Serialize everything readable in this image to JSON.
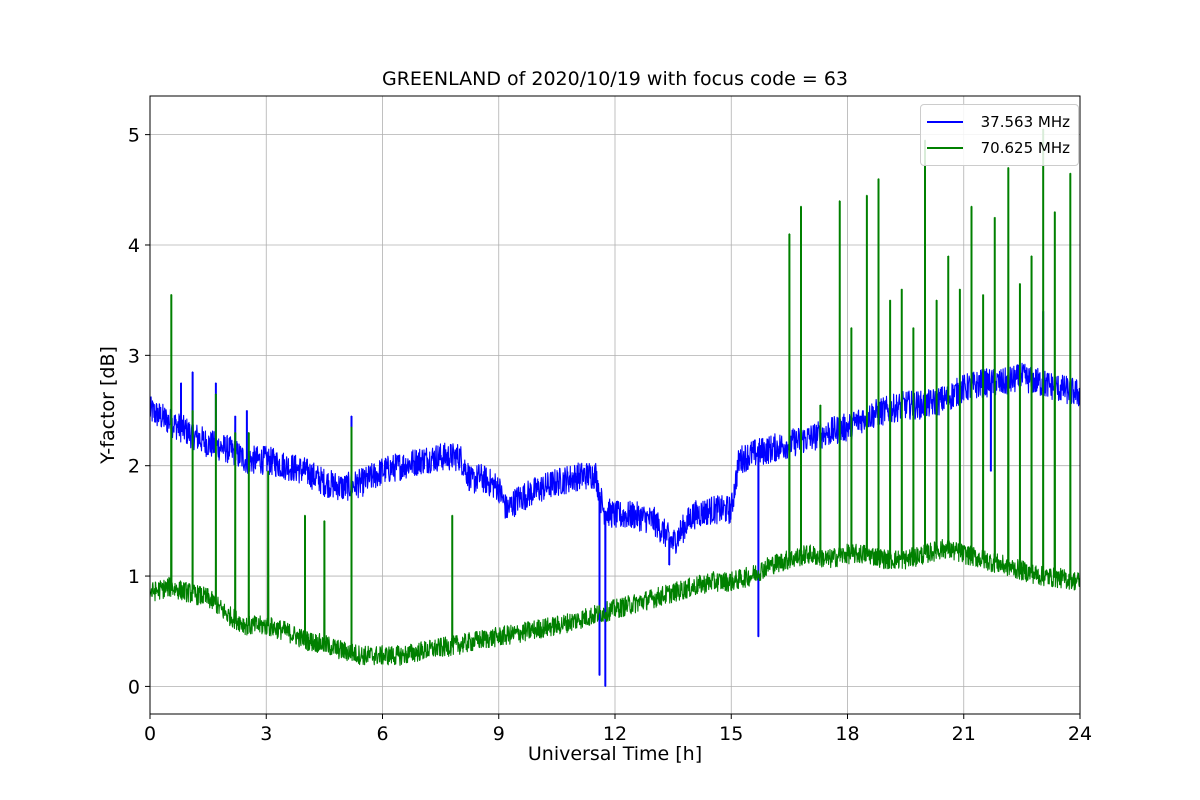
{
  "chart_data": {
    "type": "line",
    "title": "GREENLAND of 2020/10/19 with focus code = 63",
    "xlabel": "Universal Time [h]",
    "ylabel": "Y-factor [dB]",
    "xlim": [
      0,
      24
    ],
    "ylim": [
      -0.25,
      5.35
    ],
    "x_ticks": [
      "0",
      "3",
      "6",
      "9",
      "12",
      "15",
      "18",
      "21",
      "24"
    ],
    "y_ticks": [
      "0",
      "1",
      "2",
      "3",
      "4",
      "5"
    ],
    "grid": true,
    "legend_position": "top-right",
    "series": [
      {
        "name": "37.563 MHz",
        "color": "#0000ff",
        "noise": 0.13,
        "x": [
          0,
          0.5,
          1,
          1.5,
          2,
          2.5,
          3,
          3.5,
          4,
          4.5,
          5,
          5.5,
          6,
          6.5,
          7,
          7.5,
          8,
          8.3,
          8.5,
          9,
          9.2,
          9.5,
          10,
          10.5,
          11,
          11.5,
          11.7,
          12,
          12.5,
          13,
          13.5,
          14,
          14.5,
          15,
          15.2,
          15.5,
          16,
          16.5,
          17,
          17.5,
          18,
          18.5,
          19,
          19.5,
          20,
          20.5,
          21,
          21.5,
          22,
          22.5,
          23,
          23.5,
          24
        ],
        "y": [
          2.5,
          2.4,
          2.3,
          2.2,
          2.15,
          2.05,
          2.05,
          2.0,
          1.95,
          1.85,
          1.8,
          1.85,
          1.95,
          2.0,
          2.05,
          2.08,
          2.08,
          1.85,
          1.9,
          1.8,
          1.6,
          1.7,
          1.78,
          1.85,
          1.9,
          1.92,
          1.6,
          1.55,
          1.55,
          1.5,
          1.3,
          1.55,
          1.6,
          1.6,
          2.05,
          2.1,
          2.15,
          2.2,
          2.25,
          2.3,
          2.35,
          2.45,
          2.5,
          2.55,
          2.55,
          2.6,
          2.7,
          2.75,
          2.75,
          2.8,
          2.75,
          2.7,
          2.65
        ],
        "spikes": [
          {
            "x": 0.8,
            "y": 2.75
          },
          {
            "x": 1.1,
            "y": 2.85
          },
          {
            "x": 1.7,
            "y": 2.75
          },
          {
            "x": 2.2,
            "y": 2.45
          },
          {
            "x": 2.5,
            "y": 2.5
          },
          {
            "x": 5.2,
            "y": 2.45
          },
          {
            "x": 11.6,
            "y": 0.1
          },
          {
            "x": 11.75,
            "y": 0.0
          },
          {
            "x": 13.4,
            "y": 1.1
          },
          {
            "x": 15.7,
            "y": 0.45
          },
          {
            "x": 21.7,
            "y": 1.95
          },
          {
            "x": 23.05,
            "y": 3.4
          }
        ]
      },
      {
        "name": "70.625 MHz",
        "color": "#008000",
        "noise": 0.09,
        "x": [
          0,
          0.5,
          1,
          1.5,
          2,
          2.5,
          3,
          3.5,
          4,
          4.5,
          5,
          5.5,
          6,
          6.5,
          7,
          7.5,
          8,
          8.5,
          9,
          9.5,
          10,
          10.5,
          11,
          11.5,
          12,
          12.5,
          13,
          13.5,
          14,
          14.5,
          15,
          15.5,
          16,
          16.5,
          17,
          17.5,
          18,
          18.5,
          19,
          19.5,
          20,
          20.5,
          21,
          21.5,
          22,
          22.5,
          23,
          23.5,
          24
        ],
        "y": [
          0.85,
          0.9,
          0.85,
          0.8,
          0.65,
          0.55,
          0.55,
          0.5,
          0.42,
          0.38,
          0.32,
          0.28,
          0.28,
          0.28,
          0.32,
          0.35,
          0.38,
          0.42,
          0.45,
          0.48,
          0.52,
          0.55,
          0.6,
          0.65,
          0.7,
          0.75,
          0.8,
          0.85,
          0.9,
          0.95,
          0.95,
          1.0,
          1.1,
          1.15,
          1.2,
          1.15,
          1.2,
          1.2,
          1.15,
          1.15,
          1.2,
          1.25,
          1.2,
          1.15,
          1.1,
          1.05,
          1.0,
          0.98,
          0.95
        ],
        "spikes": [
          {
            "x": 0.55,
            "y": 3.55
          },
          {
            "x": 1.1,
            "y": 2.5
          },
          {
            "x": 1.7,
            "y": 2.65
          },
          {
            "x": 2.2,
            "y": 2.3
          },
          {
            "x": 2.55,
            "y": 2.3
          },
          {
            "x": 3.05,
            "y": 1.95
          },
          {
            "x": 4.0,
            "y": 1.55
          },
          {
            "x": 4.5,
            "y": 1.5
          },
          {
            "x": 5.2,
            "y": 2.35
          },
          {
            "x": 7.8,
            "y": 1.55
          },
          {
            "x": 16.5,
            "y": 4.1
          },
          {
            "x": 16.8,
            "y": 4.35
          },
          {
            "x": 17.3,
            "y": 2.55
          },
          {
            "x": 17.8,
            "y": 4.4
          },
          {
            "x": 18.1,
            "y": 3.25
          },
          {
            "x": 18.5,
            "y": 4.45
          },
          {
            "x": 18.8,
            "y": 4.6
          },
          {
            "x": 19.1,
            "y": 3.5
          },
          {
            "x": 19.4,
            "y": 3.6
          },
          {
            "x": 19.7,
            "y": 3.25
          },
          {
            "x": 20.0,
            "y": 4.95
          },
          {
            "x": 20.3,
            "y": 3.5
          },
          {
            "x": 20.6,
            "y": 3.9
          },
          {
            "x": 20.9,
            "y": 3.6
          },
          {
            "x": 21.2,
            "y": 4.35
          },
          {
            "x": 21.5,
            "y": 3.55
          },
          {
            "x": 21.8,
            "y": 4.25
          },
          {
            "x": 22.15,
            "y": 4.7
          },
          {
            "x": 22.45,
            "y": 3.65
          },
          {
            "x": 22.75,
            "y": 3.9
          },
          {
            "x": 23.05,
            "y": 5.05
          },
          {
            "x": 23.35,
            "y": 4.3
          },
          {
            "x": 23.75,
            "y": 4.65
          }
        ]
      }
    ]
  }
}
